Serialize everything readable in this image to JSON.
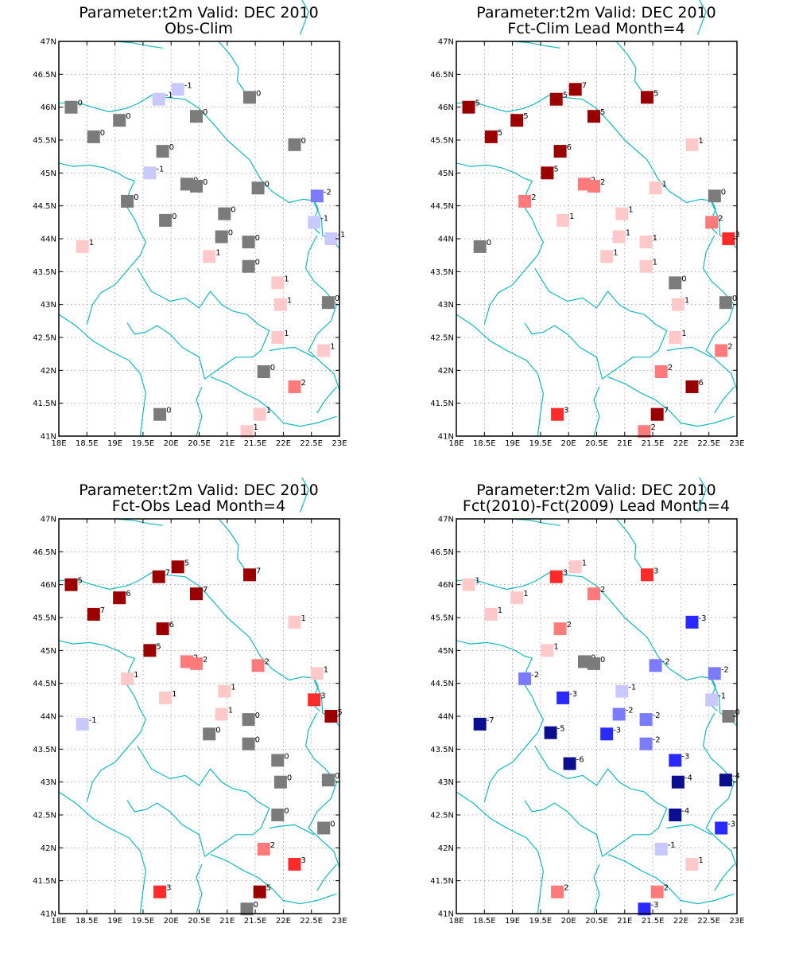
{
  "axis": {
    "lat_ticks": [
      "41N",
      "41.5N",
      "42N",
      "42.5N",
      "43N",
      "43.5N",
      "44N",
      "44.5N",
      "45N",
      "45.5N",
      "46N",
      "46.5N",
      "47N"
    ],
    "lon_ticks": [
      "18E",
      "18.5E",
      "19E",
      "19.5E",
      "20E",
      "20.5E",
      "21E",
      "21.5E",
      "22E",
      "22.5E",
      "23E"
    ],
    "lat_range": [
      41,
      47
    ],
    "lon_range": [
      18,
      23
    ]
  },
  "colors": {
    "coast": "#12b8c2",
    "grid": "#9a9a9a",
    "scale": {
      "-7": "#0a0f90",
      "-6": "#0a0f90",
      "-5": "#0a0f90",
      "-4": "#0a0f90",
      "-3": "#2a2aff",
      "-2": "#7b7bff",
      "-1": "#c9c9ff",
      "0": "#7b7b7b",
      "1": "#ffc9c9",
      "2": "#ff7b7b",
      "3": "#ff2a2a",
      "5": "#9a0000",
      "6": "#9a0000",
      "7": "#9a0000"
    }
  },
  "panels": [
    {
      "title_line1": "Parameter:t2m Valid: DEC 2010",
      "title_line2": "Obs-Clim",
      "stations": [
        {
          "lon": 18.22,
          "lat": 46.0,
          "label": "0"
        },
        {
          "lon": 20.12,
          "lat": 46.27,
          "label": "-1"
        },
        {
          "lon": 19.78,
          "lat": 46.12,
          "label": "-1"
        },
        {
          "lon": 21.4,
          "lat": 46.15,
          "label": "0"
        },
        {
          "lon": 19.08,
          "lat": 45.8,
          "label": "0"
        },
        {
          "lon": 20.45,
          "lat": 45.86,
          "label": "0"
        },
        {
          "lon": 18.62,
          "lat": 45.55,
          "label": "0"
        },
        {
          "lon": 22.2,
          "lat": 45.43,
          "label": "0"
        },
        {
          "lon": 19.85,
          "lat": 45.33,
          "label": "0"
        },
        {
          "lon": 19.62,
          "lat": 45.0,
          "label": "-1"
        },
        {
          "lon": 20.28,
          "lat": 44.83,
          "label": "0"
        },
        {
          "lon": 20.45,
          "lat": 44.8,
          "label": "0"
        },
        {
          "lon": 21.55,
          "lat": 44.77,
          "label": "0"
        },
        {
          "lon": 22.6,
          "lat": 44.65,
          "label": "-2"
        },
        {
          "lon": 19.22,
          "lat": 44.57,
          "label": "0"
        },
        {
          "lon": 20.95,
          "lat": 44.38,
          "label": "0"
        },
        {
          "lon": 19.9,
          "lat": 44.28,
          "label": "0"
        },
        {
          "lon": 22.55,
          "lat": 44.25,
          "label": "-1"
        },
        {
          "lon": 20.9,
          "lat": 44.03,
          "label": "0"
        },
        {
          "lon": 21.38,
          "lat": 43.95,
          "label": "0"
        },
        {
          "lon": 22.85,
          "lat": 44.0,
          "label": "-1"
        },
        {
          "lon": 18.42,
          "lat": 43.88,
          "label": "1"
        },
        {
          "lon": 20.68,
          "lat": 43.73,
          "label": "1"
        },
        {
          "lon": 21.38,
          "lat": 43.58,
          "label": "0"
        },
        {
          "lon": 21.9,
          "lat": 43.33,
          "label": "1"
        },
        {
          "lon": 21.95,
          "lat": 43.0,
          "label": "1"
        },
        {
          "lon": 22.8,
          "lat": 43.03,
          "label": "0"
        },
        {
          "lon": 21.9,
          "lat": 42.5,
          "label": "1"
        },
        {
          "lon": 22.72,
          "lat": 42.3,
          "label": "1"
        },
        {
          "lon": 21.65,
          "lat": 41.98,
          "label": "0"
        },
        {
          "lon": 22.2,
          "lat": 41.75,
          "label": "2"
        },
        {
          "lon": 19.8,
          "lat": 41.33,
          "label": "0"
        },
        {
          "lon": 21.58,
          "lat": 41.33,
          "label": "1"
        },
        {
          "lon": 21.35,
          "lat": 41.07,
          "label": "1"
        }
      ]
    },
    {
      "title_line1": "Parameter:t2m Valid: DEC 2010",
      "title_line2": "Fct-Clim Lead Month=4",
      "stations": [
        {
          "lon": 18.22,
          "lat": 46.0,
          "label": "5"
        },
        {
          "lon": 20.12,
          "lat": 46.27,
          "label": "7"
        },
        {
          "lon": 19.78,
          "lat": 46.12,
          "label": "5"
        },
        {
          "lon": 21.4,
          "lat": 46.15,
          "label": "5"
        },
        {
          "lon": 19.08,
          "lat": 45.8,
          "label": "5"
        },
        {
          "lon": 20.45,
          "lat": 45.86,
          "label": "5"
        },
        {
          "lon": 18.62,
          "lat": 45.55,
          "label": "5"
        },
        {
          "lon": 22.2,
          "lat": 45.43,
          "label": "1"
        },
        {
          "lon": 19.85,
          "lat": 45.33,
          "label": "6"
        },
        {
          "lon": 19.62,
          "lat": 45.0,
          "label": "5"
        },
        {
          "lon": 20.28,
          "lat": 44.83,
          "label": "2"
        },
        {
          "lon": 20.45,
          "lat": 44.8,
          "label": "2"
        },
        {
          "lon": 21.55,
          "lat": 44.77,
          "label": "1"
        },
        {
          "lon": 22.6,
          "lat": 44.65,
          "label": "0"
        },
        {
          "lon": 19.22,
          "lat": 44.57,
          "label": "2"
        },
        {
          "lon": 20.95,
          "lat": 44.38,
          "label": "1"
        },
        {
          "lon": 19.9,
          "lat": 44.28,
          "label": "1"
        },
        {
          "lon": 22.55,
          "lat": 44.25,
          "label": "2"
        },
        {
          "lon": 20.9,
          "lat": 44.03,
          "label": "1"
        },
        {
          "lon": 21.38,
          "lat": 43.95,
          "label": "1"
        },
        {
          "lon": 22.85,
          "lat": 44.0,
          "label": "3"
        },
        {
          "lon": 18.42,
          "lat": 43.88,
          "label": "0"
        },
        {
          "lon": 20.68,
          "lat": 43.73,
          "label": "1"
        },
        {
          "lon": 21.38,
          "lat": 43.58,
          "label": "1"
        },
        {
          "lon": 21.9,
          "lat": 43.33,
          "label": "0"
        },
        {
          "lon": 21.95,
          "lat": 43.0,
          "label": "1"
        },
        {
          "lon": 22.8,
          "lat": 43.03,
          "label": "0"
        },
        {
          "lon": 21.9,
          "lat": 42.5,
          "label": "1"
        },
        {
          "lon": 22.72,
          "lat": 42.3,
          "label": "2"
        },
        {
          "lon": 21.65,
          "lat": 41.98,
          "label": "2"
        },
        {
          "lon": 22.2,
          "lat": 41.75,
          "label": "6"
        },
        {
          "lon": 19.8,
          "lat": 41.33,
          "label": "3"
        },
        {
          "lon": 21.58,
          "lat": 41.33,
          "label": "7"
        },
        {
          "lon": 21.35,
          "lat": 41.07,
          "label": "2"
        }
      ]
    },
    {
      "title_line1": "Parameter:t2m Valid: DEC 2010",
      "title_line2": "Fct-Obs Lead Month=4",
      "stations": [
        {
          "lon": 18.22,
          "lat": 46.0,
          "label": "5"
        },
        {
          "lon": 20.12,
          "lat": 46.27,
          "label": "5"
        },
        {
          "lon": 19.78,
          "lat": 46.12,
          "label": "7"
        },
        {
          "lon": 21.4,
          "lat": 46.15,
          "label": "7"
        },
        {
          "lon": 19.08,
          "lat": 45.8,
          "label": "6"
        },
        {
          "lon": 20.45,
          "lat": 45.86,
          "label": "7"
        },
        {
          "lon": 18.62,
          "lat": 45.55,
          "label": "7"
        },
        {
          "lon": 22.2,
          "lat": 45.43,
          "label": "1"
        },
        {
          "lon": 19.85,
          "lat": 45.33,
          "label": "6"
        },
        {
          "lon": 19.62,
          "lat": 45.0,
          "label": "5"
        },
        {
          "lon": 20.28,
          "lat": 44.83,
          "label": "2"
        },
        {
          "lon": 20.45,
          "lat": 44.8,
          "label": "2"
        },
        {
          "lon": 21.55,
          "lat": 44.77,
          "label": "2"
        },
        {
          "lon": 22.6,
          "lat": 44.65,
          "label": "1"
        },
        {
          "lon": 19.22,
          "lat": 44.57,
          "label": "1"
        },
        {
          "lon": 20.95,
          "lat": 44.38,
          "label": "1"
        },
        {
          "lon": 19.9,
          "lat": 44.28,
          "label": "1"
        },
        {
          "lon": 22.55,
          "lat": 44.25,
          "label": "3"
        },
        {
          "lon": 20.9,
          "lat": 44.03,
          "label": "1"
        },
        {
          "lon": 21.38,
          "lat": 43.95,
          "label": "0"
        },
        {
          "lon": 22.85,
          "lat": 44.0,
          "label": "5"
        },
        {
          "lon": 18.42,
          "lat": 43.88,
          "label": "-1"
        },
        {
          "lon": 20.68,
          "lat": 43.73,
          "label": "0"
        },
        {
          "lon": 21.38,
          "lat": 43.58,
          "label": "0"
        },
        {
          "lon": 21.9,
          "lat": 43.33,
          "label": "0"
        },
        {
          "lon": 21.95,
          "lat": 43.0,
          "label": "0"
        },
        {
          "lon": 22.8,
          "lat": 43.03,
          "label": "0"
        },
        {
          "lon": 21.9,
          "lat": 42.5,
          "label": "0"
        },
        {
          "lon": 22.72,
          "lat": 42.3,
          "label": "0"
        },
        {
          "lon": 21.65,
          "lat": 41.98,
          "label": "2"
        },
        {
          "lon": 22.2,
          "lat": 41.75,
          "label": "3"
        },
        {
          "lon": 19.8,
          "lat": 41.33,
          "label": "3"
        },
        {
          "lon": 21.58,
          "lat": 41.33,
          "label": "5"
        },
        {
          "lon": 21.35,
          "lat": 41.07,
          "label": "0"
        }
      ]
    },
    {
      "title_line1": "Parameter:t2m Valid: DEC 2010",
      "title_line2": "Fct(2010)-Fct(2009) Lead Month=4",
      "stations": [
        {
          "lon": 18.22,
          "lat": 46.0,
          "label": "1"
        },
        {
          "lon": 20.12,
          "lat": 46.27,
          "label": "1"
        },
        {
          "lon": 19.78,
          "lat": 46.12,
          "label": "3"
        },
        {
          "lon": 21.4,
          "lat": 46.15,
          "label": "3"
        },
        {
          "lon": 19.08,
          "lat": 45.8,
          "label": "1"
        },
        {
          "lon": 20.45,
          "lat": 45.86,
          "label": "2"
        },
        {
          "lon": 18.62,
          "lat": 45.55,
          "label": "1"
        },
        {
          "lon": 22.2,
          "lat": 45.43,
          "label": "-3"
        },
        {
          "lon": 19.85,
          "lat": 45.33,
          "label": "2"
        },
        {
          "lon": 19.62,
          "lat": 45.0,
          "label": "1"
        },
        {
          "lon": 20.28,
          "lat": 44.83,
          "label": "0"
        },
        {
          "lon": 20.45,
          "lat": 44.8,
          "label": "0"
        },
        {
          "lon": 21.55,
          "lat": 44.77,
          "label": "-2"
        },
        {
          "lon": 22.6,
          "lat": 44.65,
          "label": "-2"
        },
        {
          "lon": 19.22,
          "lat": 44.57,
          "label": "-2"
        },
        {
          "lon": 20.95,
          "lat": 44.38,
          "label": "-1"
        },
        {
          "lon": 19.9,
          "lat": 44.28,
          "label": "-3"
        },
        {
          "lon": 22.55,
          "lat": 44.25,
          "label": "-1"
        },
        {
          "lon": 20.9,
          "lat": 44.03,
          "label": "-2"
        },
        {
          "lon": 21.38,
          "lat": 43.95,
          "label": "-2"
        },
        {
          "lon": 22.85,
          "lat": 44.0,
          "label": "0"
        },
        {
          "lon": 18.42,
          "lat": 43.88,
          "label": "-7"
        },
        {
          "lon": 19.68,
          "lat": 43.75,
          "label": "-5"
        },
        {
          "lon": 20.68,
          "lat": 43.73,
          "label": "-3"
        },
        {
          "lon": 21.38,
          "lat": 43.58,
          "label": "-2"
        },
        {
          "lon": 21.9,
          "lat": 43.33,
          "label": "-3"
        },
        {
          "lon": 20.02,
          "lat": 43.28,
          "label": "-6"
        },
        {
          "lon": 21.95,
          "lat": 43.0,
          "label": "-4"
        },
        {
          "lon": 22.8,
          "lat": 43.03,
          "label": "-4"
        },
        {
          "lon": 21.9,
          "lat": 42.5,
          "label": "-4"
        },
        {
          "lon": 22.72,
          "lat": 42.3,
          "label": "-3"
        },
        {
          "lon": 21.65,
          "lat": 41.98,
          "label": "-1"
        },
        {
          "lon": 22.2,
          "lat": 41.75,
          "label": "1"
        },
        {
          "lon": 19.8,
          "lat": 41.33,
          "label": "2"
        },
        {
          "lon": 21.58,
          "lat": 41.33,
          "label": "2"
        },
        {
          "lon": 21.35,
          "lat": 41.07,
          "label": "-3"
        }
      ]
    }
  ]
}
